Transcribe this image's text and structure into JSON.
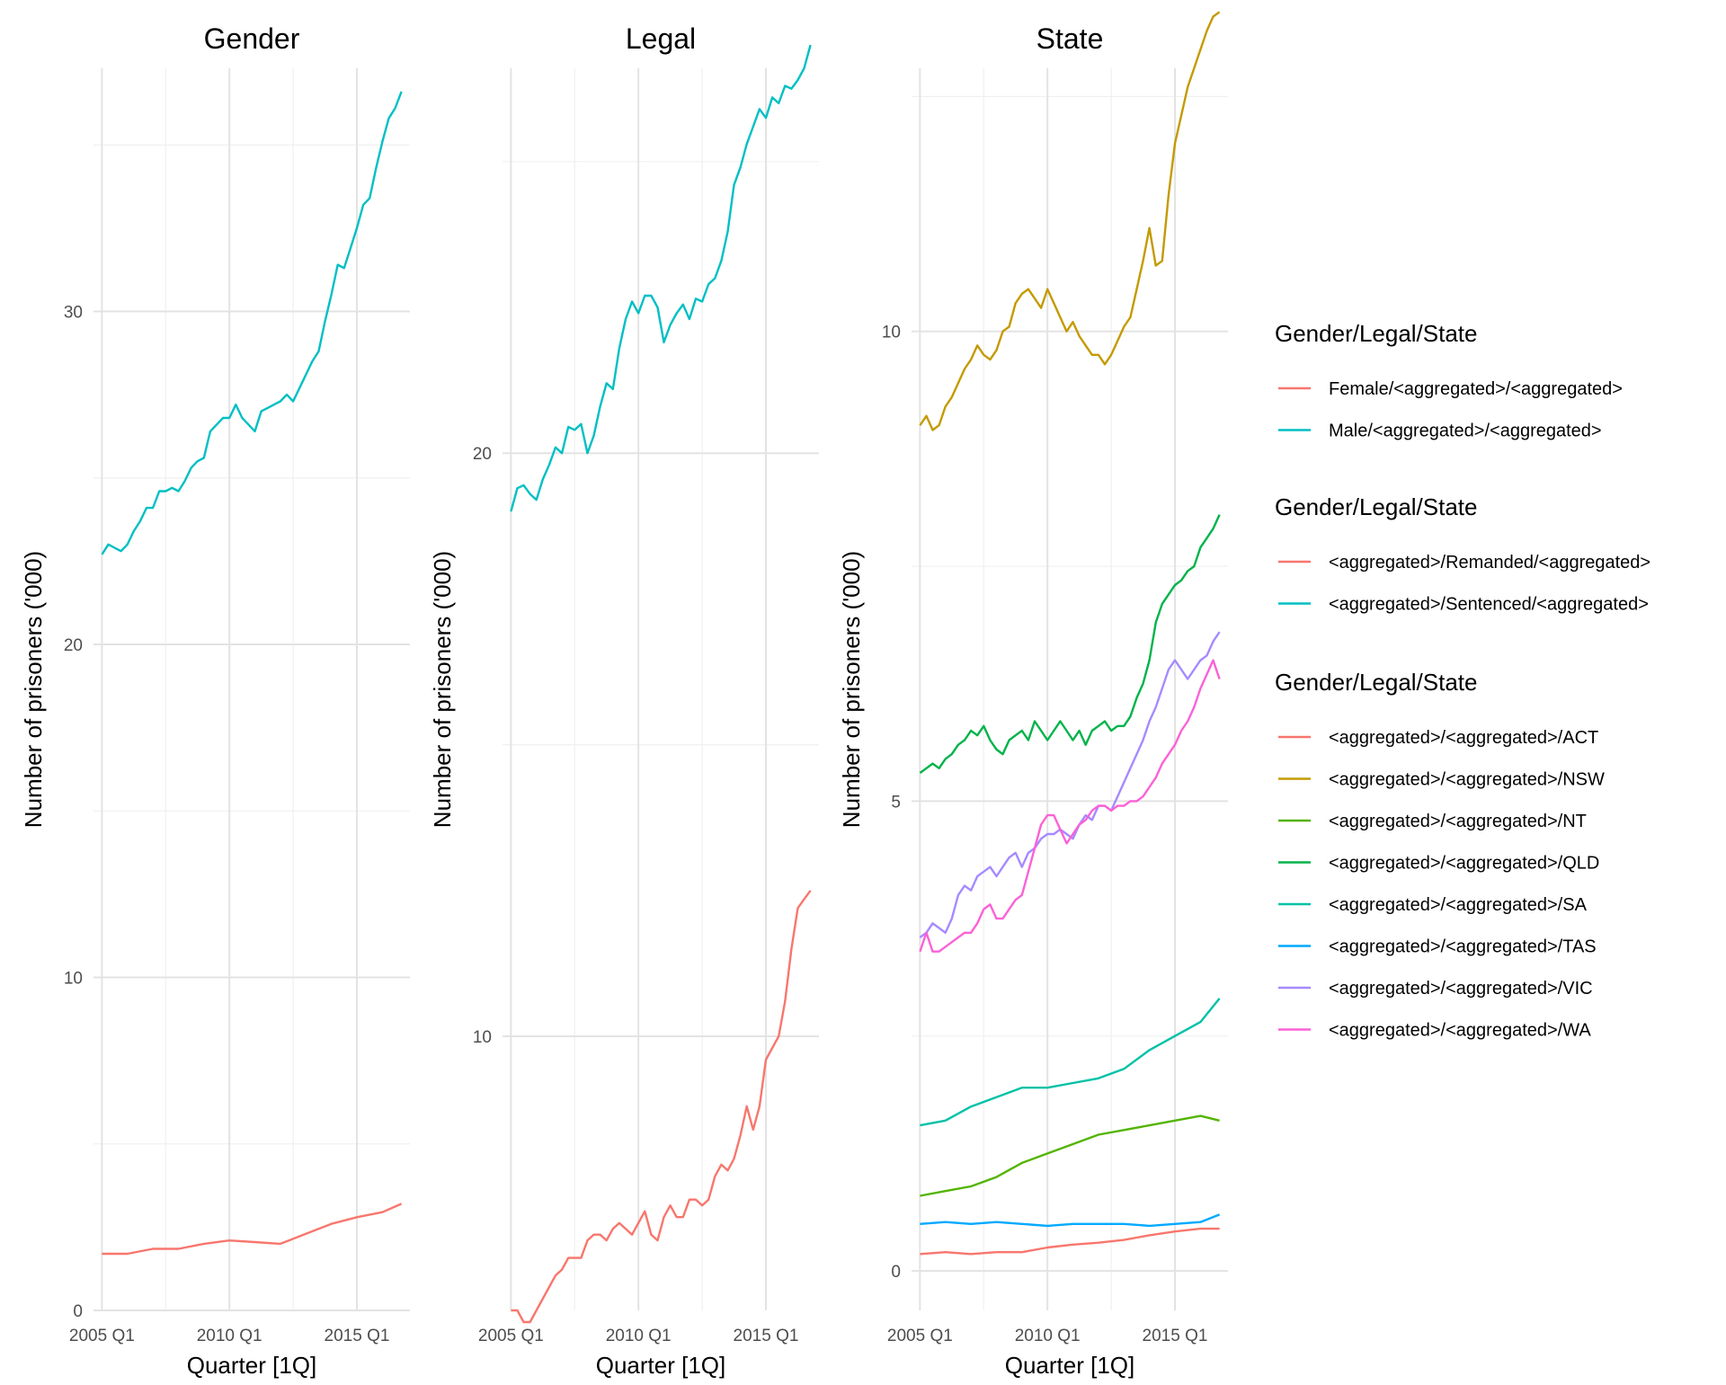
{
  "colors": {
    "grid_major": "#e3e3e3",
    "grid_minor": "#f0f0f0",
    "tick_text": "#4d4d4d",
    "text": "#000000",
    "background": "#ffffff"
  },
  "chart_data": [
    {
      "type": "line",
      "title": "Gender",
      "xlabel": "Quarter [1Q]",
      "ylabel": "Number of prisoners ('000)",
      "x_ticks": [
        "2005 Q1",
        "2010 Q1",
        "2015 Q1"
      ],
      "y_ticks": [
        "0",
        "10",
        "20",
        "30"
      ],
      "ylim": [
        0,
        37.3
      ],
      "grid": true,
      "series": [
        {
          "name": "Female/<aggregated>/<aggregated>",
          "color": "#F8766D",
          "x": [
            2005,
            2006,
            2007,
            2008,
            2009,
            2010,
            2011,
            2012,
            2013,
            2014,
            2015,
            2016,
            2016.75
          ],
          "y": [
            1.7,
            1.7,
            1.85,
            1.85,
            2.0,
            2.1,
            2.05,
            2.0,
            2.3,
            2.6,
            2.8,
            2.95,
            3.2
          ]
        },
        {
          "name": "Male/<aggregated>/<aggregated>",
          "color": "#00BFC4",
          "x": [
            2005,
            2005.25,
            2005.5,
            2005.75,
            2006,
            2006.25,
            2006.5,
            2006.75,
            2007,
            2007.25,
            2007.5,
            2007.75,
            2008,
            2008.25,
            2008.5,
            2008.75,
            2009,
            2009.25,
            2009.5,
            2009.75,
            2010,
            2010.25,
            2010.5,
            2010.75,
            2011,
            2011.25,
            2011.5,
            2011.75,
            2012,
            2012.25,
            2012.5,
            2012.75,
            2013,
            2013.25,
            2013.5,
            2013.75,
            2014,
            2014.25,
            2014.5,
            2014.75,
            2015,
            2015.25,
            2015.5,
            2015.75,
            2016,
            2016.25,
            2016.5,
            2016.75
          ],
          "y": [
            22.7,
            23.0,
            22.9,
            22.8,
            23.0,
            23.4,
            23.7,
            24.1,
            24.1,
            24.6,
            24.6,
            24.7,
            24.6,
            24.9,
            25.3,
            25.5,
            25.6,
            26.4,
            26.6,
            26.8,
            26.8,
            27.2,
            26.8,
            26.6,
            26.4,
            27.0,
            27.1,
            27.2,
            27.3,
            27.5,
            27.3,
            27.7,
            28.1,
            28.5,
            28.8,
            29.7,
            30.5,
            31.4,
            31.3,
            31.9,
            32.5,
            33.2,
            33.4,
            34.3,
            35.1,
            35.8,
            36.1,
            36.6
          ]
        }
      ]
    },
    {
      "type": "line",
      "title": "Legal",
      "xlabel": "Quarter [1Q]",
      "ylabel": "Number of prisoners ('000)",
      "x_ticks": [
        "2005 Q1",
        "2010 Q1",
        "2015 Q1"
      ],
      "y_ticks": [
        "10",
        "20"
      ],
      "ylim": [
        5.3,
        26.6
      ],
      "grid": true,
      "series": [
        {
          "name": "<aggregated>/Remanded/<aggregated>",
          "color": "#F8766D",
          "x": [
            2005,
            2005.25,
            2005.5,
            2005.75,
            2006,
            2006.25,
            2006.5,
            2006.75,
            2007,
            2007.25,
            2007.5,
            2007.75,
            2008,
            2008.25,
            2008.5,
            2008.75,
            2009,
            2009.25,
            2009.5,
            2009.75,
            2010,
            2010.25,
            2010.5,
            2010.75,
            2011,
            2011.25,
            2011.5,
            2011.75,
            2012,
            2012.25,
            2012.5,
            2012.75,
            2013,
            2013.25,
            2013.5,
            2013.75,
            2014,
            2014.25,
            2014.5,
            2014.75,
            2015,
            2015.25,
            2015.5,
            2015.75,
            2016,
            2016.25,
            2016.5,
            2016.75
          ],
          "y": [
            5.3,
            5.3,
            5.1,
            5.1,
            5.3,
            5.5,
            5.7,
            5.9,
            6.0,
            6.2,
            6.2,
            6.2,
            6.5,
            6.6,
            6.6,
            6.5,
            6.7,
            6.8,
            6.7,
            6.6,
            6.8,
            7.0,
            6.6,
            6.5,
            6.9,
            7.1,
            6.9,
            6.9,
            7.2,
            7.2,
            7.1,
            7.2,
            7.6,
            7.8,
            7.7,
            7.9,
            8.3,
            8.8,
            8.4,
            8.8,
            9.6,
            9.8,
            10.0,
            10.6,
            11.5,
            12.2,
            12.35,
            12.5
          ]
        },
        {
          "name": "<aggregated>/Sentenced/<aggregated>",
          "color": "#00BFC4",
          "x": [
            2005,
            2005.25,
            2005.5,
            2005.75,
            2006,
            2006.25,
            2006.5,
            2006.75,
            2007,
            2007.25,
            2007.5,
            2007.75,
            2008,
            2008.25,
            2008.5,
            2008.75,
            2009,
            2009.25,
            2009.5,
            2009.75,
            2010,
            2010.25,
            2010.5,
            2010.75,
            2011,
            2011.25,
            2011.5,
            2011.75,
            2012,
            2012.25,
            2012.5,
            2012.75,
            2013,
            2013.25,
            2013.5,
            2013.75,
            2014,
            2014.25,
            2014.5,
            2014.75,
            2015,
            2015.25,
            2015.5,
            2015.75,
            2016,
            2016.25,
            2016.5,
            2016.75
          ],
          "y": [
            19.0,
            19.4,
            19.45,
            19.3,
            19.2,
            19.55,
            19.8,
            20.1,
            20.0,
            20.45,
            20.4,
            20.5,
            20.0,
            20.3,
            20.8,
            21.2,
            21.1,
            21.8,
            22.3,
            22.6,
            22.4,
            22.7,
            22.7,
            22.5,
            21.9,
            22.2,
            22.4,
            22.55,
            22.3,
            22.65,
            22.6,
            22.9,
            23.0,
            23.3,
            23.8,
            24.6,
            24.9,
            25.3,
            25.6,
            25.9,
            25.75,
            26.1,
            26.0,
            26.3,
            26.25,
            26.4,
            26.6,
            27.0
          ]
        }
      ]
    },
    {
      "type": "line",
      "title": "State",
      "xlabel": "Quarter [1Q]",
      "ylabel": "Number of prisoners ('000)",
      "x_ticks": [
        "2005 Q1",
        "2010 Q1",
        "2015 Q1"
      ],
      "y_ticks": [
        "0",
        "5",
        "10"
      ],
      "ylim": [
        -0.42,
        12.8
      ],
      "grid": true,
      "legend_title": "Gender/Legal/State",
      "series": [
        {
          "name": "<aggregated>/<aggregated>/ACT",
          "color": "#F8766D",
          "x": [
            2005,
            2006,
            2007,
            2008,
            2009,
            2010,
            2011,
            2012,
            2013,
            2014,
            2015,
            2016,
            2016.75
          ],
          "y": [
            0.18,
            0.2,
            0.18,
            0.2,
            0.2,
            0.25,
            0.28,
            0.3,
            0.33,
            0.38,
            0.42,
            0.45,
            0.45
          ]
        },
        {
          "name": "<aggregated>/<aggregated>/NSW",
          "color": "#C49A00",
          "x": [
            2005,
            2005.25,
            2005.5,
            2005.75,
            2006,
            2006.25,
            2006.5,
            2006.75,
            2007,
            2007.25,
            2007.5,
            2007.75,
            2008,
            2008.25,
            2008.5,
            2008.75,
            2009,
            2009.25,
            2009.5,
            2009.75,
            2010,
            2010.25,
            2010.5,
            2010.75,
            2011,
            2011.25,
            2011.5,
            2011.75,
            2012,
            2012.25,
            2012.5,
            2012.75,
            2013,
            2013.25,
            2013.5,
            2013.75,
            2014,
            2014.25,
            2014.5,
            2014.75,
            2015,
            2015.25,
            2015.5,
            2015.75,
            2016,
            2016.25,
            2016.5,
            2016.75
          ],
          "y": [
            9.0,
            9.1,
            8.95,
            9.0,
            9.2,
            9.3,
            9.45,
            9.6,
            9.7,
            9.85,
            9.75,
            9.7,
            9.8,
            10.0,
            10.05,
            10.3,
            10.4,
            10.45,
            10.35,
            10.25,
            10.45,
            10.3,
            10.15,
            10.0,
            10.1,
            9.95,
            9.85,
            9.75,
            9.75,
            9.65,
            9.75,
            9.9,
            10.05,
            10.15,
            10.45,
            10.75,
            11.1,
            10.7,
            10.75,
            11.45,
            12.0,
            12.3,
            12.6,
            12.8,
            13.0,
            13.2,
            13.35,
            13.4
          ]
        },
        {
          "name": "<aggregated>/<aggregated>/NT",
          "color": "#53B400",
          "x": [
            2005,
            2006,
            2007,
            2008,
            2009,
            2010,
            2011,
            2012,
            2013,
            2014,
            2015,
            2016,
            2016.75
          ],
          "y": [
            0.8,
            0.85,
            0.9,
            1.0,
            1.15,
            1.25,
            1.35,
            1.45,
            1.5,
            1.55,
            1.6,
            1.65,
            1.6
          ]
        },
        {
          "name": "<aggregated>/<aggregated>/QLD",
          "color": "#00B34A",
          "x": [
            2005,
            2005.25,
            2005.5,
            2005.75,
            2006,
            2006.25,
            2006.5,
            2006.75,
            2007,
            2007.25,
            2007.5,
            2007.75,
            2008,
            2008.25,
            2008.5,
            2008.75,
            2009,
            2009.25,
            2009.5,
            2009.75,
            2010,
            2010.25,
            2010.5,
            2010.75,
            2011,
            2011.25,
            2011.5,
            2011.75,
            2012,
            2012.25,
            2012.5,
            2012.75,
            2013,
            2013.25,
            2013.5,
            2013.75,
            2014,
            2014.25,
            2014.5,
            2014.75,
            2015,
            2015.25,
            2015.5,
            2015.75,
            2016,
            2016.25,
            2016.5,
            2016.75
          ],
          "y": [
            5.3,
            5.35,
            5.4,
            5.35,
            5.45,
            5.5,
            5.6,
            5.65,
            5.75,
            5.7,
            5.8,
            5.65,
            5.55,
            5.5,
            5.65,
            5.7,
            5.75,
            5.65,
            5.85,
            5.75,
            5.65,
            5.75,
            5.85,
            5.75,
            5.65,
            5.75,
            5.6,
            5.75,
            5.8,
            5.85,
            5.75,
            5.8,
            5.8,
            5.9,
            6.1,
            6.25,
            6.5,
            6.9,
            7.1,
            7.2,
            7.3,
            7.35,
            7.45,
            7.5,
            7.7,
            7.8,
            7.9,
            8.05
          ]
        },
        {
          "name": "<aggregated>/<aggregated>/SA",
          "color": "#00C1A7",
          "x": [
            2005,
            2006,
            2007,
            2008,
            2009,
            2010,
            2011,
            2012,
            2013,
            2014,
            2015,
            2016,
            2016.75
          ],
          "y": [
            1.55,
            1.6,
            1.75,
            1.85,
            1.95,
            1.95,
            2.0,
            2.05,
            2.15,
            2.35,
            2.5,
            2.65,
            2.9
          ]
        },
        {
          "name": "<aggregated>/<aggregated>/TAS",
          "color": "#00A9FF",
          "x": [
            2005,
            2006,
            2007,
            2008,
            2009,
            2010,
            2011,
            2012,
            2013,
            2014,
            2015,
            2016,
            2016.75
          ],
          "y": [
            0.5,
            0.52,
            0.5,
            0.52,
            0.5,
            0.48,
            0.5,
            0.5,
            0.5,
            0.48,
            0.5,
            0.52,
            0.6
          ]
        },
        {
          "name": "<aggregated>/<aggregated>/VIC",
          "color": "#A58AFF",
          "x": [
            2005,
            2005.25,
            2005.5,
            2005.75,
            2006,
            2006.25,
            2006.5,
            2006.75,
            2007,
            2007.25,
            2007.5,
            2007.75,
            2008,
            2008.25,
            2008.5,
            2008.75,
            2009,
            2009.25,
            2009.5,
            2009.75,
            2010,
            2010.25,
            2010.5,
            2010.75,
            2011,
            2011.25,
            2011.5,
            2011.75,
            2012,
            2012.25,
            2012.5,
            2012.75,
            2013,
            2013.25,
            2013.5,
            2013.75,
            2014,
            2014.25,
            2014.5,
            2014.75,
            2015,
            2015.25,
            2015.5,
            2015.75,
            2016,
            2016.25,
            2016.5,
            2016.75
          ],
          "y": [
            3.55,
            3.6,
            3.7,
            3.65,
            3.6,
            3.75,
            4.0,
            4.1,
            4.05,
            4.2,
            4.25,
            4.3,
            4.2,
            4.3,
            4.4,
            4.45,
            4.3,
            4.45,
            4.5,
            4.6,
            4.65,
            4.65,
            4.7,
            4.65,
            4.6,
            4.75,
            4.85,
            4.8,
            4.95,
            4.95,
            4.9,
            5.05,
            5.2,
            5.35,
            5.5,
            5.65,
            5.85,
            6.0,
            6.2,
            6.4,
            6.5,
            6.4,
            6.3,
            6.4,
            6.5,
            6.55,
            6.7,
            6.8
          ]
        },
        {
          "name": "<aggregated>/<aggregated>/WA",
          "color": "#FB61D7",
          "x": [
            2005,
            2005.25,
            2005.5,
            2005.75,
            2006,
            2006.25,
            2006.5,
            2006.75,
            2007,
            2007.25,
            2007.5,
            2007.75,
            2008,
            2008.25,
            2008.5,
            2008.75,
            2009,
            2009.25,
            2009.5,
            2009.75,
            2010,
            2010.25,
            2010.5,
            2010.75,
            2011,
            2011.25,
            2011.5,
            2011.75,
            2012,
            2012.25,
            2012.5,
            2012.75,
            2013,
            2013.25,
            2013.5,
            2013.75,
            2014,
            2014.25,
            2014.5,
            2014.75,
            2015,
            2015.25,
            2015.5,
            2015.75,
            2016,
            2016.25,
            2016.5,
            2016.75
          ],
          "y": [
            3.4,
            3.6,
            3.4,
            3.4,
            3.45,
            3.5,
            3.55,
            3.6,
            3.6,
            3.7,
            3.85,
            3.9,
            3.75,
            3.75,
            3.85,
            3.95,
            4.0,
            4.25,
            4.5,
            4.75,
            4.85,
            4.85,
            4.7,
            4.55,
            4.65,
            4.75,
            4.8,
            4.9,
            4.95,
            4.95,
            4.9,
            4.95,
            4.95,
            5.0,
            5.0,
            5.05,
            5.15,
            5.25,
            5.4,
            5.5,
            5.6,
            5.75,
            5.85,
            6.0,
            6.2,
            6.35,
            6.5,
            6.3
          ]
        }
      ]
    }
  ],
  "legend_groups": [
    {
      "title": "Gender/Legal/State",
      "panel": 0
    },
    {
      "title": "Gender/Legal/State",
      "panel": 1
    },
    {
      "title": "Gender/Legal/State",
      "panel": 2
    }
  ]
}
